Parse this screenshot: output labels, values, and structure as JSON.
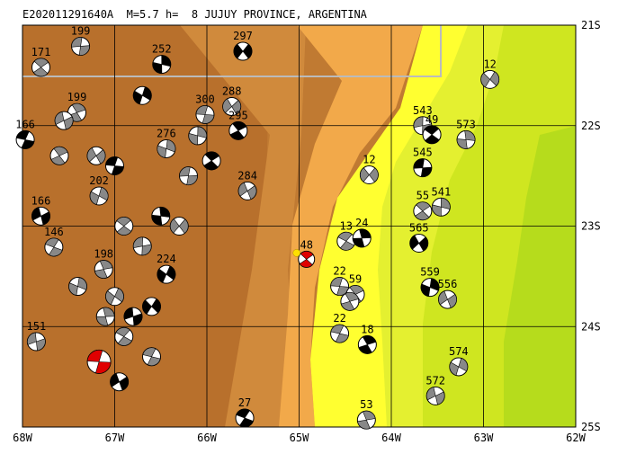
{
  "header": {
    "title": "E202011291640A  M=5.7 h=  8 JUJUY PROVINCE, ARGENTINA"
  },
  "x_labels": [
    "68W",
    "67W",
    "66W",
    "65W",
    "64W",
    "63W",
    "62W"
  ],
  "y_labels": [
    "21S",
    "22S",
    "23S",
    "24S",
    "25S"
  ],
  "main_event": {
    "label": "48",
    "lon": -64.92,
    "lat": -23.33
  },
  "events": [
    {
      "label": "297",
      "lon": -65.61,
      "lat": -21.26
    },
    {
      "label": "199",
      "lon": -67.37,
      "lat": -21.21
    },
    {
      "label": "171",
      "lon": -67.8,
      "lat": -21.42
    },
    {
      "label": "252",
      "lon": -66.49,
      "lat": -21.39
    },
    {
      "label": "288",
      "lon": -65.73,
      "lat": -21.81
    },
    {
      "label": "300",
      "lon": -66.02,
      "lat": -21.89
    },
    {
      "label": "295",
      "lon": -65.66,
      "lat": -22.05
    },
    {
      "label": "276",
      "lon": -66.44,
      "lat": -22.23
    },
    {
      "label": "284",
      "lon": -65.56,
      "lat": -22.65
    },
    {
      "label": "166",
      "lon": -67.97,
      "lat": -22.14
    },
    {
      "label": "199",
      "lon": -67.41,
      "lat": -21.87
    },
    {
      "label": "202",
      "lon": -67.17,
      "lat": -22.7
    },
    {
      "label": "166",
      "lon": -67.8,
      "lat": -22.9
    },
    {
      "label": "146",
      "lon": -67.66,
      "lat": -23.21
    },
    {
      "label": "198",
      "lon": -67.12,
      "lat": -23.43
    },
    {
      "label": "224",
      "lon": -66.44,
      "lat": -23.48
    },
    {
      "label": "151",
      "lon": -67.85,
      "lat": -24.15
    },
    {
      "label": "13",
      "lon": -64.49,
      "lat": -23.15
    },
    {
      "label": "24",
      "lon": -64.32,
      "lat": -23.12
    },
    {
      "label": "12",
      "lon": -62.93,
      "lat": -21.54
    },
    {
      "label": "543",
      "lon": -63.66,
      "lat": -22.0
    },
    {
      "label": "49",
      "lon": -63.56,
      "lat": -22.09
    },
    {
      "label": "573",
      "lon": -63.19,
      "lat": -22.14
    },
    {
      "label": "12",
      "lon": -64.24,
      "lat": -22.49
    },
    {
      "label": "545",
      "lon": -63.66,
      "lat": -22.42
    },
    {
      "label": "55",
      "lon": -63.66,
      "lat": -22.85
    },
    {
      "label": "541",
      "lon": -63.46,
      "lat": -22.81
    },
    {
      "label": "565",
      "lon": -63.7,
      "lat": -23.17
    },
    {
      "label": "22",
      "lon": -64.56,
      "lat": -23.6
    },
    {
      "label": "59",
      "lon": -64.39,
      "lat": -23.68
    },
    {
      "label": "559",
      "lon": -63.58,
      "lat": -23.61
    },
    {
      "label": "556",
      "lon": -63.39,
      "lat": -23.73
    },
    {
      "label": "22",
      "lon": -64.56,
      "lat": -24.07
    },
    {
      "label": "18",
      "lon": -64.26,
      "lat": -24.18
    },
    {
      "label": "574",
      "lon": -63.27,
      "lat": -24.4
    },
    {
      "label": "572",
      "lon": -63.52,
      "lat": -24.69
    },
    {
      "label": "27",
      "lon": -65.59,
      "lat": -24.91
    },
    {
      "label": "53",
      "lon": -64.27,
      "lat": -24.93
    },
    {
      "lon": -67.0,
      "lat": -23.7
    },
    {
      "lon": -66.8,
      "lat": -23.9
    },
    {
      "lon": -66.9,
      "lat": -24.1
    },
    {
      "lon": -67.1,
      "lat": -23.9
    },
    {
      "lon": -66.6,
      "lat": -23.8
    },
    {
      "lon": -66.7,
      "lat": -23.2
    },
    {
      "lon": -66.9,
      "lat": -23.0
    },
    {
      "lon": -66.5,
      "lat": -22.9
    },
    {
      "lon": -66.3,
      "lat": -23.0
    },
    {
      "lon": -66.2,
      "lat": -22.5
    },
    {
      "lon": -65.95,
      "lat": -22.35
    },
    {
      "lon": -66.1,
      "lat": -22.1
    },
    {
      "lon": -67.2,
      "lat": -22.3
    },
    {
      "lon": -67.0,
      "lat": -22.4
    },
    {
      "lon": -67.6,
      "lat": -22.3
    },
    {
      "lon": -67.4,
      "lat": -23.6
    },
    {
      "lon": -66.95,
      "lat": -24.55
    },
    {
      "lon": -66.6,
      "lat": -24.3
    },
    {
      "lon": -64.45,
      "lat": -23.75
    },
    {
      "lon": -66.7,
      "lat": -21.7
    },
    {
      "lon": -67.55,
      "lat": -21.95
    }
  ],
  "highlight_event": {
    "lon": -67.17,
    "lat": -24.35
  }
}
